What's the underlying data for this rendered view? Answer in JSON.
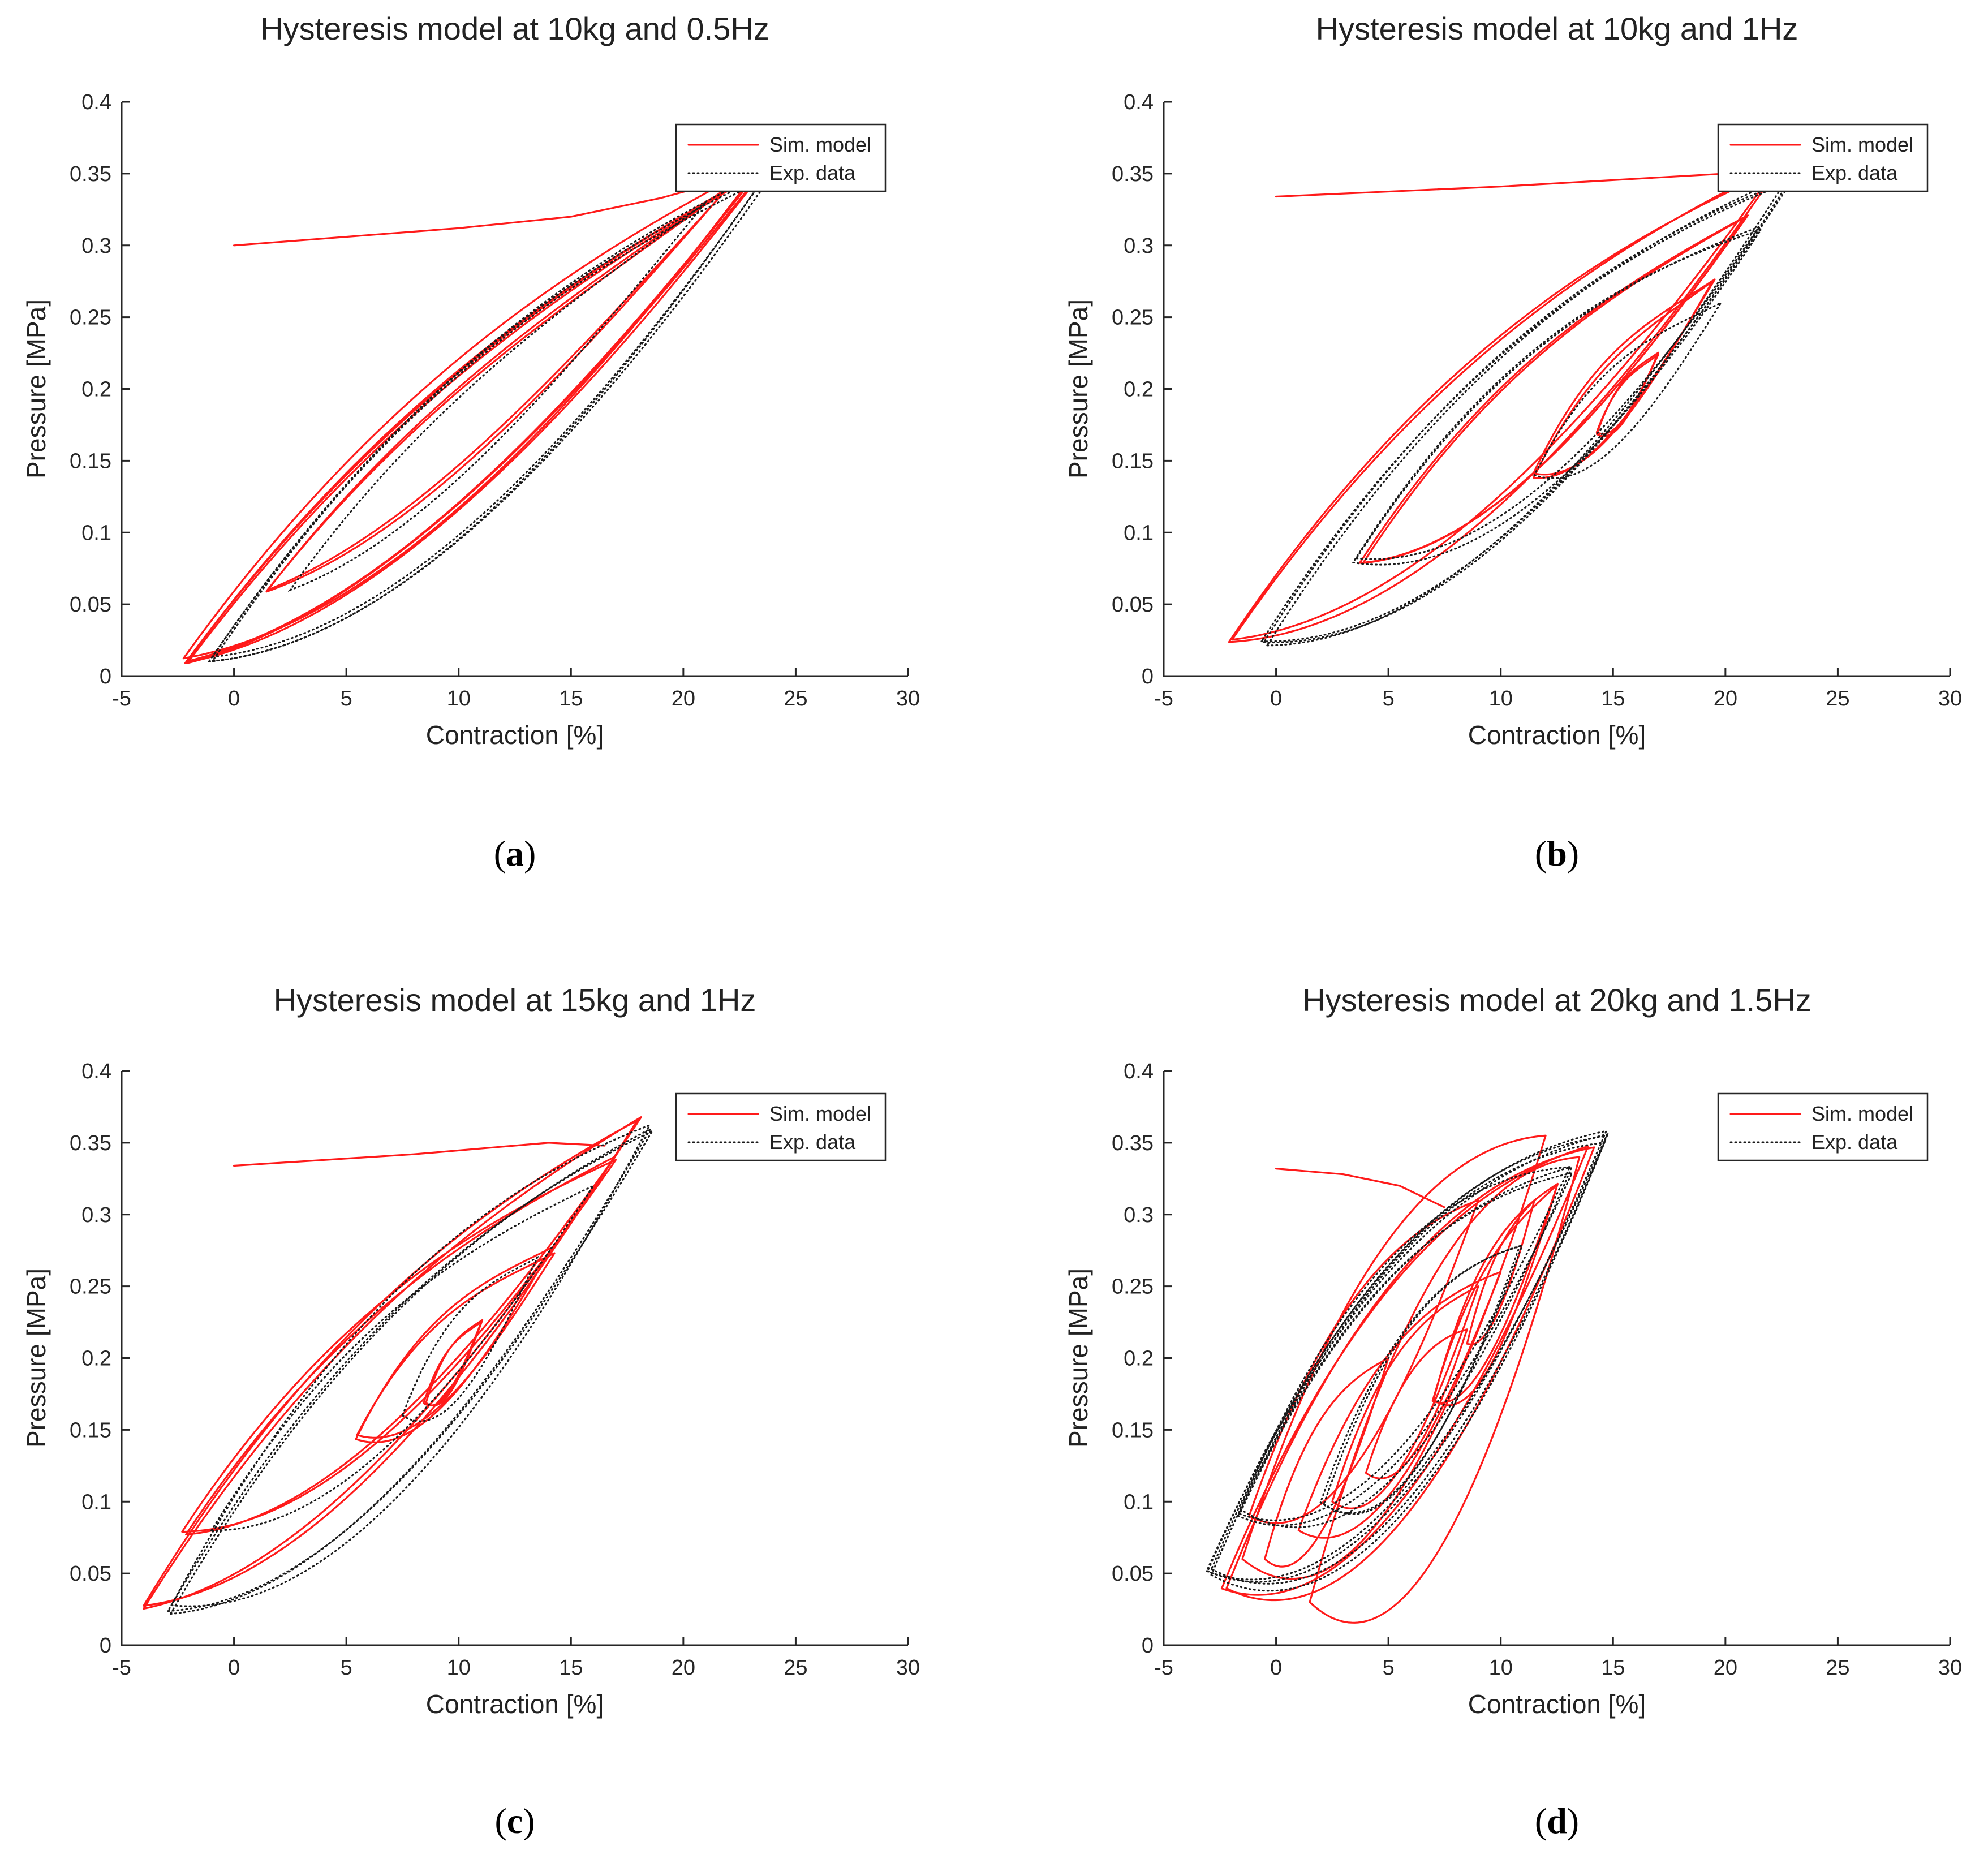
{
  "colors": {
    "sim": "#ff1a1a",
    "exp": "#1a1a1a",
    "axis": "#262626",
    "text": "#222222"
  },
  "chart_data": [
    {
      "type": "line",
      "panel": "a",
      "caption_letter": "a",
      "title": "Hysteresis model at 10kg and 0.5Hz",
      "xlabel": "Contraction [%]",
      "ylabel": "Pressure [MPa]",
      "xlim": [
        -5,
        30
      ],
      "ylim": [
        0,
        0.4
      ],
      "xticks": [
        "-5",
        "0",
        "5",
        "10",
        "15",
        "20",
        "25",
        "30"
      ],
      "yticks": [
        "0",
        "0.05",
        "0.1",
        "0.15",
        "0.2",
        "0.25",
        "0.3",
        "0.35",
        "0.4"
      ],
      "legend": {
        "position": "top-right",
        "entries": [
          "Sim. model",
          "Exp. data"
        ]
      },
      "series": [
        {
          "name": "Sim. model",
          "style": "solid",
          "segments": [
            {
              "kind": "path",
              "points": [
                [
                  0,
                  0.3
                ],
                [
                  10,
                  0.312
                ],
                [
                  15,
                  0.32
                ],
                [
                  19,
                  0.333
                ],
                [
                  23,
                  0.35
                ]
              ]
            },
            {
              "kind": "loop",
              "lo": [
                -2.2,
                0.01
              ],
              "hi": [
                23.5,
                0.355
              ],
              "bow": 0.055,
              "skew": 0.02,
              "repeat": 4,
              "jitter": 0.006
            },
            {
              "kind": "loop",
              "lo": [
                1.5,
                0.06
              ],
              "hi": [
                22,
                0.34
              ],
              "bow": 0.03,
              "skew": 0.02,
              "repeat": 2,
              "jitter": 0.004
            }
          ]
        },
        {
          "name": "Exp. data",
          "style": "dotted",
          "segments": [
            {
              "kind": "loop",
              "lo": [
                -1,
                0.012
              ],
              "hi": [
                23.8,
                0.35
              ],
              "bow": 0.07,
              "skew": 0.02,
              "repeat": 3,
              "jitter": 0.007
            },
            {
              "kind": "loop",
              "lo": [
                2.5,
                0.06
              ],
              "hi": [
                21,
                0.33
              ],
              "bow": 0.035,
              "skew": 0.02,
              "repeat": 1,
              "jitter": 0.0
            }
          ]
        }
      ]
    },
    {
      "type": "line",
      "panel": "b",
      "caption_letter": "b",
      "title": "Hysteresis model at 10kg and 1Hz",
      "xlabel": "Contraction [%]",
      "ylabel": "Pressure [MPa]",
      "xlim": [
        -5,
        30
      ],
      "ylim": [
        0,
        0.4
      ],
      "xticks": [
        "-5",
        "0",
        "5",
        "10",
        "15",
        "20",
        "25",
        "30"
      ],
      "yticks": [
        "0",
        "0.05",
        "0.1",
        "0.15",
        "0.2",
        "0.25",
        "0.3",
        "0.35",
        "0.4"
      ],
      "legend": {
        "position": "top-right",
        "entries": [
          "Sim. model",
          "Exp. data"
        ]
      },
      "series": [
        {
          "name": "Sim. model",
          "style": "solid",
          "segments": [
            {
              "kind": "path",
              "points": [
                [
                  0,
                  0.334
                ],
                [
                  10,
                  0.341
                ],
                [
                  20,
                  0.35
                ],
                [
                  22,
                  0.352
                ]
              ]
            },
            {
              "kind": "loop",
              "lo": [
                -2,
                0.026
              ],
              "hi": [
                22.3,
                0.355
              ],
              "bow": 0.06,
              "skew": 0.02,
              "repeat": 2,
              "jitter": 0.005
            },
            {
              "kind": "loop",
              "lo": [
                3.8,
                0.078
              ],
              "hi": [
                21,
                0.32
              ],
              "bow": 0.05,
              "skew": 0.02,
              "repeat": 2,
              "jitter": 0.004
            },
            {
              "kind": "loop",
              "lo": [
                11.5,
                0.14
              ],
              "hi": [
                19.5,
                0.277
              ],
              "bow": 0.03,
              "skew": 0.02,
              "repeat": 2,
              "jitter": 0.004
            },
            {
              "kind": "loop",
              "lo": [
                14.3,
                0.17
              ],
              "hi": [
                17,
                0.225
              ],
              "bow": 0.016,
              "skew": 0.01,
              "repeat": 2,
              "jitter": 0.003
            }
          ]
        },
        {
          "name": "Exp. data",
          "style": "dotted",
          "segments": [
            {
              "kind": "loop",
              "lo": [
                -0.5,
                0.025
              ],
              "hi": [
                22.8,
                0.345
              ],
              "bow": 0.07,
              "skew": 0.02,
              "repeat": 3,
              "jitter": 0.008
            },
            {
              "kind": "loop",
              "lo": [
                3.5,
                0.08
              ],
              "hi": [
                21.5,
                0.31
              ],
              "bow": 0.055,
              "skew": 0.02,
              "repeat": 2,
              "jitter": 0.006
            },
            {
              "kind": "loop",
              "lo": [
                11.5,
                0.14
              ],
              "hi": [
                19.8,
                0.26
              ],
              "bow": 0.032,
              "skew": 0.02,
              "repeat": 1,
              "jitter": 0.0
            }
          ]
        }
      ]
    },
    {
      "type": "line",
      "panel": "c",
      "caption_letter": "c",
      "title": "Hysteresis model at 15kg and 1Hz",
      "xlabel": "Contraction [%]",
      "ylabel": "Pressure [MPa]",
      "xlim": [
        -5,
        30
      ],
      "ylim": [
        0,
        0.4
      ],
      "xticks": [
        "-5",
        "0",
        "5",
        "10",
        "15",
        "20",
        "25",
        "30"
      ],
      "yticks": [
        "0",
        "0.05",
        "0.1",
        "0.15",
        "0.2",
        "0.25",
        "0.3",
        "0.35",
        "0.4"
      ],
      "legend": {
        "position": "top-right",
        "entries": [
          "Sim. model",
          "Exp. data"
        ]
      },
      "series": [
        {
          "name": "Sim. model",
          "style": "solid",
          "segments": [
            {
              "kind": "path",
              "points": [
                [
                  0,
                  0.334
                ],
                [
                  8,
                  0.342
                ],
                [
                  14,
                  0.35
                ],
                [
                  16.5,
                  0.348
                ]
              ]
            },
            {
              "kind": "loop",
              "lo": [
                -4,
                0.026
              ],
              "hi": [
                18,
                0.368
              ],
              "bow": 0.065,
              "skew": 0.02,
              "repeat": 2,
              "jitter": 0.006
            },
            {
              "kind": "loop",
              "lo": [
                -2.2,
                0.077
              ],
              "hi": [
                17,
                0.34
              ],
              "bow": 0.05,
              "skew": 0.02,
              "repeat": 2,
              "jitter": 0.006
            },
            {
              "kind": "loop",
              "lo": [
                5.5,
                0.145
              ],
              "hi": [
                14.2,
                0.275
              ],
              "bow": 0.032,
              "skew": 0.02,
              "repeat": 2,
              "jitter": 0.004
            },
            {
              "kind": "loop",
              "lo": [
                8.5,
                0.17
              ],
              "hi": [
                11,
                0.225
              ],
              "bow": 0.016,
              "skew": 0.01,
              "repeat": 2,
              "jitter": 0.003
            }
          ]
        },
        {
          "name": "Exp. data",
          "style": "dotted",
          "segments": [
            {
              "kind": "loop",
              "lo": [
                -2.8,
                0.025
              ],
              "hi": [
                18.5,
                0.36
              ],
              "bow": 0.075,
              "skew": 0.02,
              "repeat": 3,
              "jitter": 0.008
            },
            {
              "kind": "loop",
              "lo": [
                -1,
                0.08
              ],
              "hi": [
                16,
                0.32
              ],
              "bow": 0.05,
              "skew": 0.02,
              "repeat": 1,
              "jitter": 0.0
            },
            {
              "kind": "loop",
              "lo": [
                7.5,
                0.16
              ],
              "hi": [
                13.5,
                0.27
              ],
              "bow": 0.03,
              "skew": 0.02,
              "repeat": 1,
              "jitter": 0.0
            }
          ]
        }
      ]
    },
    {
      "type": "line",
      "panel": "d",
      "caption_letter": "d",
      "title": "Hysteresis model at 20kg and 1.5Hz",
      "xlabel": "Contraction [%]",
      "ylabel": "Pressure [MPa]",
      "xlim": [
        -5,
        30
      ],
      "ylim": [
        0,
        0.4
      ],
      "xticks": [
        "-5",
        "0",
        "5",
        "10",
        "15",
        "20",
        "25",
        "30"
      ],
      "yticks": [
        "0",
        "0.05",
        "0.1",
        "0.15",
        "0.2",
        "0.25",
        "0.3",
        "0.35",
        "0.4"
      ],
      "legend": {
        "position": "top-right",
        "entries": [
          "Sim. model",
          "Exp. data"
        ]
      },
      "series": [
        {
          "name": "Sim. model",
          "style": "solid",
          "segments": [
            {
              "kind": "path",
              "points": [
                [
                  0,
                  0.332
                ],
                [
                  3,
                  0.328
                ],
                [
                  5.5,
                  0.32
                ],
                [
                  7.5,
                  0.305
                ]
              ]
            },
            {
              "kind": "loop",
              "lo": [
                -2.3,
                0.04
              ],
              "hi": [
                14,
                0.35
              ],
              "bow": 0.09,
              "skew": 0.02,
              "repeat": 2,
              "jitter": 0.008
            },
            {
              "kind": "loop",
              "lo": [
                -1.5,
                0.06
              ],
              "hi": [
                12,
                0.355
              ],
              "bow": 0.1,
              "skew": 0.02,
              "repeat": 1,
              "jitter": 0.0
            },
            {
              "kind": "loop",
              "lo": [
                1.5,
                0.03
              ],
              "hi": [
                13.5,
                0.34
              ],
              "bow": 0.11,
              "skew": 0.02,
              "repeat": 1,
              "jitter": 0.0
            },
            {
              "kind": "loop",
              "lo": [
                -1.2,
                0.09
              ],
              "hi": [
                9,
                0.31
              ],
              "bow": 0.06,
              "skew": 0.02,
              "repeat": 1,
              "jitter": 0.0
            },
            {
              "kind": "loop",
              "lo": [
                1,
                0.08
              ],
              "hi": [
                10,
                0.26
              ],
              "bow": 0.06,
              "skew": 0.02,
              "repeat": 1,
              "jitter": 0.0
            },
            {
              "kind": "loop",
              "lo": [
                2.5,
                0.1
              ],
              "hi": [
                9,
                0.25
              ],
              "bow": 0.05,
              "skew": 0.02,
              "repeat": 1,
              "jitter": 0.0
            },
            {
              "kind": "loop",
              "lo": [
                -0.5,
                0.06
              ],
              "hi": [
                5,
                0.2
              ],
              "bow": 0.05,
              "skew": 0.02,
              "repeat": 1,
              "jitter": 0.0
            },
            {
              "kind": "loop",
              "lo": [
                7,
                0.17
              ],
              "hi": [
                12.5,
                0.32
              ],
              "bow": 0.04,
              "skew": 0.02,
              "repeat": 2,
              "jitter": 0.005
            },
            {
              "kind": "loop",
              "lo": [
                8.5,
                0.21
              ],
              "hi": [
                11.5,
                0.31
              ],
              "bow": 0.025,
              "skew": 0.01,
              "repeat": 1,
              "jitter": 0.0
            },
            {
              "kind": "loop",
              "lo": [
                4,
                0.12
              ],
              "hi": [
                8.5,
                0.22
              ],
              "bow": 0.03,
              "skew": 0.01,
              "repeat": 1,
              "jitter": 0.0
            }
          ]
        },
        {
          "name": "Exp. data",
          "style": "dotted",
          "segments": [
            {
              "kind": "loop",
              "lo": [
                -3,
                0.05
              ],
              "hi": [
                14.8,
                0.355
              ],
              "bow": 0.1,
              "skew": 0.02,
              "repeat": 4,
              "jitter": 0.01
            },
            {
              "kind": "loop",
              "lo": [
                -1.5,
                0.09
              ],
              "hi": [
                13,
                0.33
              ],
              "bow": 0.08,
              "skew": 0.02,
              "repeat": 3,
              "jitter": 0.01
            },
            {
              "kind": "loop",
              "lo": [
                2,
                0.1
              ],
              "hi": [
                11,
                0.28
              ],
              "bow": 0.06,
              "skew": 0.02,
              "repeat": 2,
              "jitter": 0.008
            }
          ]
        }
      ]
    }
  ]
}
